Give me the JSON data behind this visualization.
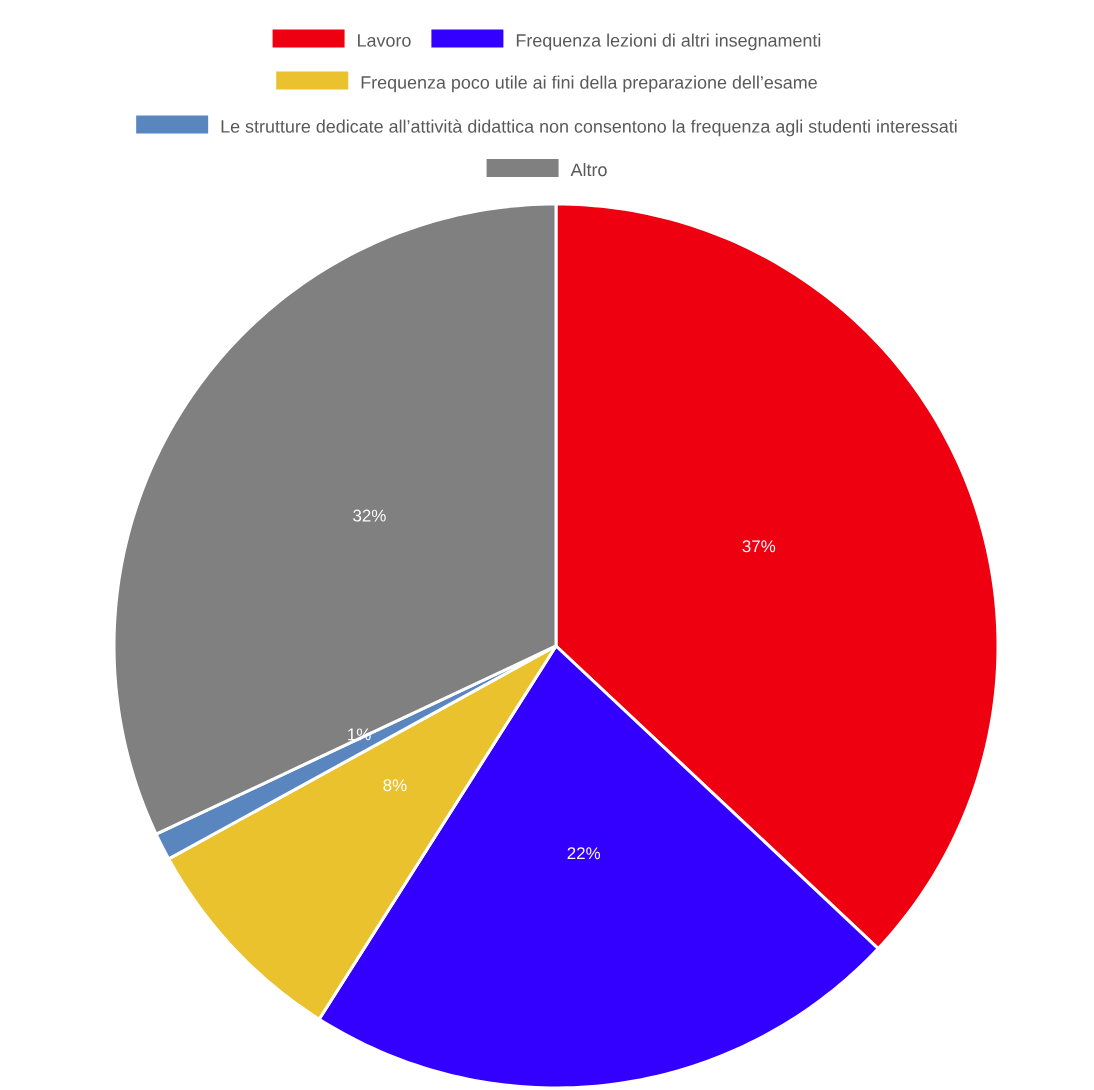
{
  "chart_data": {
    "type": "pie",
    "legend": "top",
    "categories": [
      "Lavoro",
      "Frequenza lezioni di altri insegnamenti",
      "Frequenza poco utile ai fini della preparazione dell’esame",
      "Le strutture dedicate all’attività didattica non consentono la frequenza agli studenti interessati",
      "Altro"
    ],
    "values": [
      37,
      22,
      8,
      1,
      32
    ],
    "colors": [
      "#ee0011",
      "#3300ff",
      "#e9c22d",
      "#5a86c0",
      "#808080"
    ],
    "value_labels": [
      "37%",
      "22%",
      "8%",
      "1%",
      "32%"
    ]
  }
}
